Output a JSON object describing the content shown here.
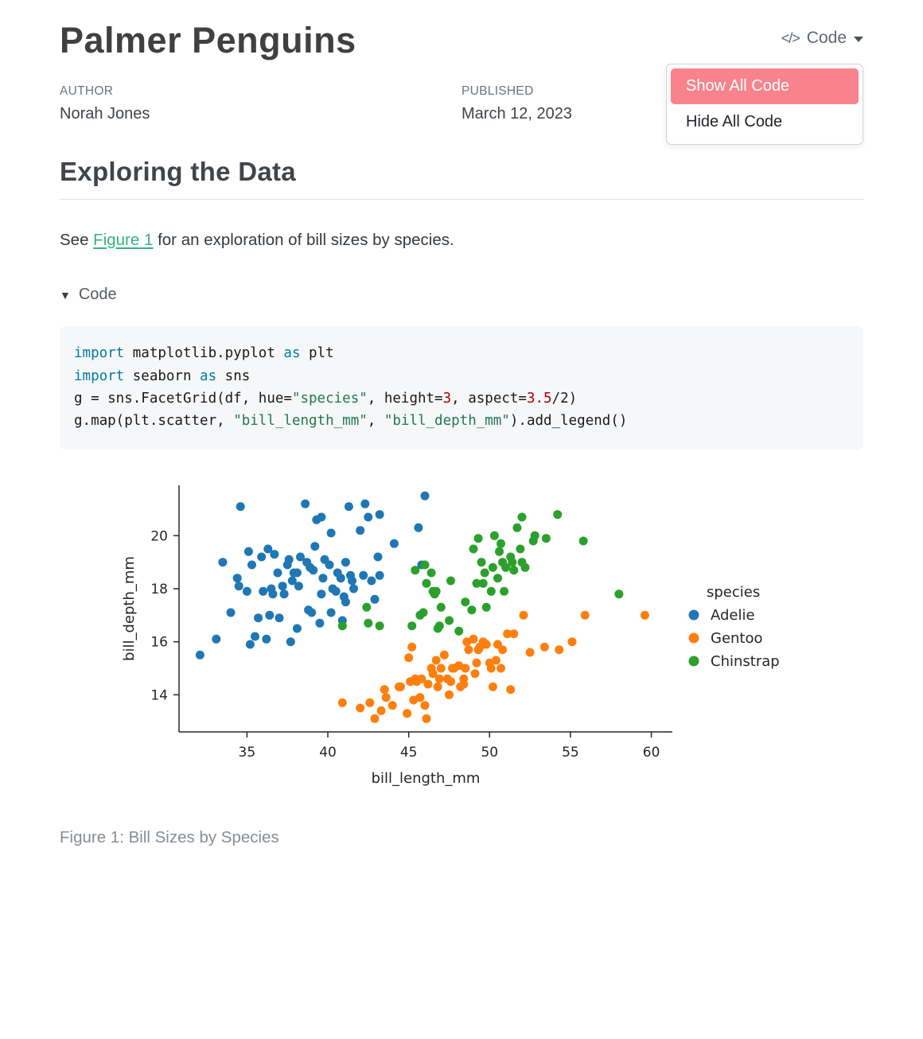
{
  "colors": {
    "menu_highlight": "#f8838d",
    "link": "#35b380",
    "title_text": "#404040"
  },
  "header": {
    "title": "Palmer Penguins",
    "code_menu": {
      "button_label": "Code",
      "code_icon_glyph": "</>",
      "items": [
        {
          "label": "Show All Code",
          "highlighted": true
        },
        {
          "label": "Hide All Code",
          "highlighted": false
        }
      ]
    },
    "author_label": "AUTHOR",
    "author_value": "Norah Jones",
    "published_label": "PUBLISHED",
    "published_value": "March 12, 2023"
  },
  "section_heading": "Exploring the Data",
  "paragraph": {
    "before_link": "See ",
    "link_text": "Figure 1",
    "after_link": " for an exploration of bill sizes by species."
  },
  "code_fold": {
    "arrow_glyph": "▼",
    "label": "Code"
  },
  "code_block": {
    "lines": [
      [
        {
          "c": "kw",
          "t": "import"
        },
        {
          "c": "pl",
          "t": " matplotlib.pyplot "
        },
        {
          "c": "kw",
          "t": "as"
        },
        {
          "c": "pl",
          "t": " plt"
        }
      ],
      [
        {
          "c": "kw",
          "t": "import"
        },
        {
          "c": "pl",
          "t": " seaborn "
        },
        {
          "c": "kw",
          "t": "as"
        },
        {
          "c": "pl",
          "t": " sns"
        }
      ],
      [
        {
          "c": "pl",
          "t": "g = sns.FacetGrid(df, hue="
        },
        {
          "c": "st",
          "t": "\"species\""
        },
        {
          "c": "pl",
          "t": ", height="
        },
        {
          "c": "dv",
          "t": "3"
        },
        {
          "c": "pl",
          "t": ", aspect="
        },
        {
          "c": "dv",
          "t": "3.5"
        },
        {
          "c": "pl",
          "t": "/2)"
        }
      ],
      [
        {
          "c": "pl",
          "t": "g.map(plt.scatter, "
        },
        {
          "c": "st",
          "t": "\"bill_length_mm\""
        },
        {
          "c": "pl",
          "t": ", "
        },
        {
          "c": "st",
          "t": "\"bill_depth_mm\""
        },
        {
          "c": "pl",
          "t": ").add_legend()"
        }
      ]
    ]
  },
  "chart_data": {
    "type": "scatter",
    "xlabel": "bill_length_mm",
    "ylabel": "bill_depth_mm",
    "xlim": [
      30.8,
      61.3
    ],
    "ylim": [
      12.6,
      21.9
    ],
    "xticks": [
      35,
      40,
      45,
      50,
      55,
      60
    ],
    "yticks": [
      14,
      16,
      18,
      20
    ],
    "legend_title": "species",
    "legend_position": "right",
    "grid": false,
    "series": [
      {
        "name": "Adelie",
        "color": "#1f77b4",
        "points": [
          [
            32.1,
            15.5
          ],
          [
            33.1,
            16.1
          ],
          [
            33.5,
            19.0
          ],
          [
            34.0,
            17.1
          ],
          [
            34.4,
            18.4
          ],
          [
            34.5,
            18.1
          ],
          [
            34.6,
            21.1
          ],
          [
            35.0,
            17.9
          ],
          [
            35.1,
            19.4
          ],
          [
            35.2,
            15.9
          ],
          [
            35.3,
            18.9
          ],
          [
            35.5,
            16.2
          ],
          [
            35.7,
            16.9
          ],
          [
            35.9,
            19.2
          ],
          [
            36.0,
            17.9
          ],
          [
            36.2,
            16.1
          ],
          [
            36.3,
            19.5
          ],
          [
            36.4,
            17.0
          ],
          [
            36.5,
            18.0
          ],
          [
            36.6,
            17.8
          ],
          [
            36.7,
            19.3
          ],
          [
            36.9,
            18.6
          ],
          [
            37.0,
            16.9
          ],
          [
            37.2,
            18.1
          ],
          [
            37.3,
            17.8
          ],
          [
            37.5,
            18.9
          ],
          [
            37.6,
            19.1
          ],
          [
            37.7,
            16.0
          ],
          [
            37.8,
            18.3
          ],
          [
            37.9,
            18.6
          ],
          [
            38.1,
            16.5
          ],
          [
            38.1,
            18.6
          ],
          [
            38.2,
            18.1
          ],
          [
            38.3,
            19.2
          ],
          [
            38.6,
            21.2
          ],
          [
            38.7,
            19.0
          ],
          [
            38.8,
            17.2
          ],
          [
            38.9,
            18.8
          ],
          [
            39.0,
            17.1
          ],
          [
            39.1,
            18.7
          ],
          [
            39.2,
            19.6
          ],
          [
            39.3,
            20.6
          ],
          [
            39.5,
            16.7
          ],
          [
            39.6,
            17.8
          ],
          [
            39.6,
            20.7
          ],
          [
            39.7,
            18.4
          ],
          [
            39.8,
            19.1
          ],
          [
            40.1,
            18.9
          ],
          [
            40.2,
            17.1
          ],
          [
            40.2,
            20.1
          ],
          [
            40.3,
            18.0
          ],
          [
            40.5,
            17.9
          ],
          [
            40.6,
            18.6
          ],
          [
            40.8,
            18.4
          ],
          [
            40.9,
            16.8
          ],
          [
            41.0,
            17.7
          ],
          [
            41.1,
            17.5
          ],
          [
            41.1,
            19.0
          ],
          [
            41.3,
            21.1
          ],
          [
            41.4,
            18.5
          ],
          [
            41.5,
            18.3
          ],
          [
            41.6,
            18.0
          ],
          [
            42.0,
            20.2
          ],
          [
            42.2,
            18.5
          ],
          [
            42.3,
            21.2
          ],
          [
            42.5,
            20.7
          ],
          [
            42.7,
            18.3
          ],
          [
            42.9,
            17.6
          ],
          [
            43.1,
            19.2
          ],
          [
            43.2,
            18.5
          ],
          [
            43.2,
            20.8
          ],
          [
            44.1,
            19.7
          ],
          [
            45.6,
            20.3
          ],
          [
            45.8,
            18.9
          ],
          [
            46.0,
            21.5
          ]
        ]
      },
      {
        "name": "Gentoo",
        "color": "#ff7f0e",
        "points": [
          [
            40.9,
            13.7
          ],
          [
            42.0,
            13.5
          ],
          [
            42.6,
            13.7
          ],
          [
            42.9,
            13.1
          ],
          [
            43.3,
            13.4
          ],
          [
            43.5,
            14.2
          ],
          [
            43.6,
            13.9
          ],
          [
            44.0,
            13.6
          ],
          [
            44.4,
            14.3
          ],
          [
            44.5,
            14.3
          ],
          [
            44.9,
            13.3
          ],
          [
            45.0,
            15.4
          ],
          [
            45.1,
            14.5
          ],
          [
            45.2,
            15.8
          ],
          [
            45.3,
            13.8
          ],
          [
            45.4,
            14.6
          ],
          [
            45.5,
            14.5
          ],
          [
            45.7,
            13.9
          ],
          [
            45.8,
            14.6
          ],
          [
            46.0,
            13.6
          ],
          [
            46.1,
            13.1
          ],
          [
            46.2,
            14.4
          ],
          [
            46.4,
            15.0
          ],
          [
            46.5,
            14.8
          ],
          [
            46.7,
            15.3
          ],
          [
            46.8,
            14.3
          ],
          [
            46.9,
            14.6
          ],
          [
            47.0,
            15.0
          ],
          [
            47.2,
            15.5
          ],
          [
            47.4,
            14.6
          ],
          [
            47.5,
            14.0
          ],
          [
            47.6,
            14.5
          ],
          [
            47.7,
            15.0
          ],
          [
            47.8,
            15.0
          ],
          [
            48.1,
            15.1
          ],
          [
            48.2,
            14.3
          ],
          [
            48.4,
            14.4
          ],
          [
            48.4,
            14.6
          ],
          [
            48.5,
            15.0
          ],
          [
            48.6,
            16.0
          ],
          [
            48.7,
            15.7
          ],
          [
            49.0,
            16.1
          ],
          [
            49.1,
            14.8
          ],
          [
            49.2,
            15.2
          ],
          [
            49.3,
            15.7
          ],
          [
            49.4,
            15.8
          ],
          [
            49.6,
            16.0
          ],
          [
            49.8,
            15.9
          ],
          [
            50.0,
            15.2
          ],
          [
            50.1,
            15.0
          ],
          [
            50.2,
            14.3
          ],
          [
            50.4,
            15.3
          ],
          [
            50.5,
            15.9
          ],
          [
            50.7,
            15.0
          ],
          [
            50.8,
            15.7
          ],
          [
            51.1,
            16.3
          ],
          [
            51.3,
            14.2
          ],
          [
            51.5,
            16.3
          ],
          [
            52.1,
            17.0
          ],
          [
            52.5,
            15.6
          ],
          [
            53.4,
            15.8
          ],
          [
            54.3,
            15.7
          ],
          [
            55.1,
            16.0
          ],
          [
            55.9,
            17.0
          ],
          [
            59.6,
            17.0
          ]
        ]
      },
      {
        "name": "Chinstrap",
        "color": "#2ca02c",
        "points": [
          [
            40.9,
            16.6
          ],
          [
            42.4,
            17.3
          ],
          [
            42.5,
            16.7
          ],
          [
            43.2,
            16.6
          ],
          [
            45.2,
            16.6
          ],
          [
            45.4,
            18.7
          ],
          [
            45.7,
            17.0
          ],
          [
            45.9,
            17.1
          ],
          [
            46.0,
            18.9
          ],
          [
            46.1,
            18.2
          ],
          [
            46.4,
            18.6
          ],
          [
            46.5,
            17.9
          ],
          [
            46.6,
            17.8
          ],
          [
            46.7,
            17.9
          ],
          [
            46.8,
            16.5
          ],
          [
            46.9,
            16.6
          ],
          [
            47.0,
            17.3
          ],
          [
            47.5,
            16.8
          ],
          [
            47.6,
            18.3
          ],
          [
            48.1,
            16.4
          ],
          [
            48.5,
            17.5
          ],
          [
            48.9,
            17.2
          ],
          [
            49.0,
            19.5
          ],
          [
            49.2,
            18.2
          ],
          [
            49.3,
            19.9
          ],
          [
            49.5,
            19.0
          ],
          [
            49.6,
            18.2
          ],
          [
            49.7,
            18.6
          ],
          [
            49.8,
            17.3
          ],
          [
            50.1,
            17.9
          ],
          [
            50.2,
            18.8
          ],
          [
            50.3,
            20.0
          ],
          [
            50.5,
            18.4
          ],
          [
            50.6,
            19.4
          ],
          [
            50.7,
            19.7
          ],
          [
            50.8,
            19.0
          ],
          [
            50.9,
            17.9
          ],
          [
            51.0,
            18.8
          ],
          [
            51.3,
            19.2
          ],
          [
            51.4,
            19.0
          ],
          [
            51.5,
            18.7
          ],
          [
            51.7,
            20.3
          ],
          [
            51.9,
            19.5
          ],
          [
            52.0,
            19.0
          ],
          [
            52.0,
            20.7
          ],
          [
            52.2,
            18.8
          ],
          [
            52.7,
            19.8
          ],
          [
            52.8,
            20.0
          ],
          [
            53.5,
            19.9
          ],
          [
            54.2,
            20.8
          ],
          [
            55.8,
            19.8
          ],
          [
            58.0,
            17.8
          ]
        ]
      }
    ]
  },
  "figure_caption": "Figure 1: Bill Sizes by Species"
}
